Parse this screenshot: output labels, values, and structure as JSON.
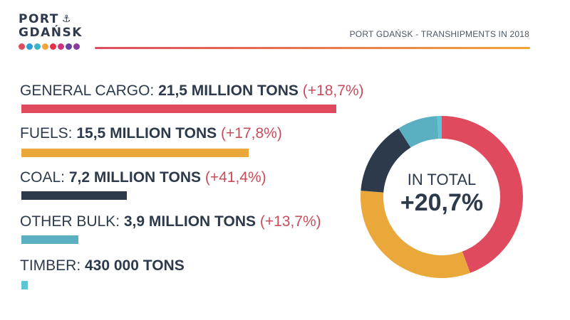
{
  "logo": {
    "line1": "PORT",
    "line2": "GDAŃSK",
    "anchor_icon": "anchor-icon",
    "dot_colors": [
      "#e04a5f",
      "#2a9fd6",
      "#3cb4c8",
      "#f2a33a",
      "#e0304a",
      "#d1307a",
      "#6b3fa0",
      "#8a3a9e"
    ]
  },
  "header": {
    "title": "PORT GDAŃSK - TRANSHIPMENTS IN 2018",
    "line_gradient": [
      "#e04a5f",
      "#f2a33a"
    ]
  },
  "colors": {
    "general_cargo": "#e04a5f",
    "fuels": "#eaa83b",
    "coal": "#2d3a4b",
    "other_bulk": "#5ab0c0",
    "timber": "#5cc6d6",
    "change_text": "#c84c5b"
  },
  "chart_data": {
    "type": "bar",
    "title": "PORT GDAŃSK - TRANSHIPMENTS IN 2018",
    "categories": [
      "GENERAL CARGO",
      "FUELS",
      "COAL",
      "OTHER BULK",
      "TIMBER"
    ],
    "values": [
      21.5,
      15.5,
      7.2,
      3.9,
      0.43
    ],
    "unit": "million tons",
    "rows": [
      {
        "category": "GENERAL CARGO:",
        "value_text": "21,5  MILLION TONS",
        "change": "(+18,7%)"
      },
      {
        "category": "FUELS:",
        "value_text": "15,5 MILLION TONS",
        "change": "(+17,8%)"
      },
      {
        "category": "COAL:",
        "value_text": "7,2 MILLION TONS",
        "change": "(+41,4%)"
      },
      {
        "category": "OTHER BULK:",
        "value_text": "3,9 MILLION TONS",
        "change": "(+13,7%)"
      },
      {
        "category": "TIMBER:",
        "value_text": "430 000 TONS",
        "change": ""
      }
    ],
    "donut": {
      "type": "pie",
      "values": [
        21.5,
        15.5,
        7.2,
        3.9,
        0.43
      ],
      "center_label": "IN TOTAL",
      "center_value": "+20,7%"
    }
  }
}
